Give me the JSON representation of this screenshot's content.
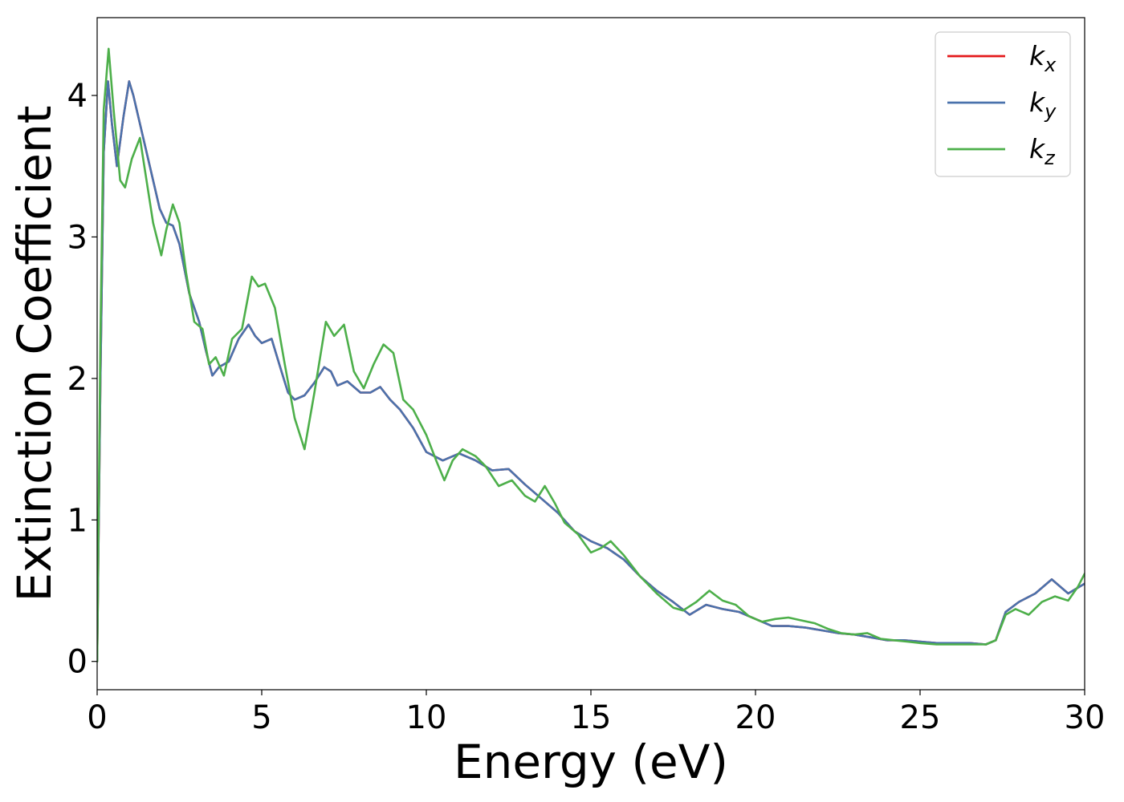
{
  "chart_data": {
    "type": "line",
    "title": "",
    "xlabel": "Energy (eV)",
    "ylabel": "Extinction Coefficient",
    "xlim": [
      0,
      30
    ],
    "ylim": [
      -0.2,
      4.55
    ],
    "xticks": [
      0,
      5,
      10,
      15,
      20,
      25,
      30
    ],
    "yticks": [
      0,
      1,
      2,
      3,
      4
    ],
    "grid": false,
    "legend_position": "top-right",
    "series": [
      {
        "name": "k_x",
        "legend_base": "k",
        "legend_sub": "x",
        "color": "#e41a1c",
        "points": [
          [
            0,
            0
          ],
          [
            0.1,
            2.0
          ],
          [
            0.2,
            3.6
          ],
          [
            0.33,
            4.1
          ],
          [
            0.45,
            3.8
          ],
          [
            0.6,
            3.5
          ],
          [
            0.8,
            3.85
          ],
          [
            0.97,
            4.1
          ],
          [
            1.1,
            4.0
          ],
          [
            1.3,
            3.8
          ],
          [
            1.6,
            3.5
          ],
          [
            1.9,
            3.2
          ],
          [
            2.1,
            3.1
          ],
          [
            2.3,
            3.08
          ],
          [
            2.5,
            2.95
          ],
          [
            2.8,
            2.6
          ],
          [
            3.1,
            2.4
          ],
          [
            3.3,
            2.2
          ],
          [
            3.5,
            2.02
          ],
          [
            3.7,
            2.08
          ],
          [
            4.0,
            2.12
          ],
          [
            4.3,
            2.28
          ],
          [
            4.6,
            2.38
          ],
          [
            4.8,
            2.3
          ],
          [
            5.0,
            2.25
          ],
          [
            5.3,
            2.28
          ],
          [
            5.6,
            2.05
          ],
          [
            5.8,
            1.9
          ],
          [
            6.0,
            1.85
          ],
          [
            6.3,
            1.88
          ],
          [
            6.6,
            1.97
          ],
          [
            6.9,
            2.08
          ],
          [
            7.1,
            2.05
          ],
          [
            7.3,
            1.95
          ],
          [
            7.6,
            1.98
          ],
          [
            8.0,
            1.9
          ],
          [
            8.3,
            1.9
          ],
          [
            8.6,
            1.94
          ],
          [
            8.9,
            1.85
          ],
          [
            9.2,
            1.78
          ],
          [
            9.6,
            1.65
          ],
          [
            10.0,
            1.48
          ],
          [
            10.5,
            1.42
          ],
          [
            11.0,
            1.47
          ],
          [
            11.5,
            1.42
          ],
          [
            12.0,
            1.35
          ],
          [
            12.5,
            1.36
          ],
          [
            13.0,
            1.25
          ],
          [
            13.5,
            1.15
          ],
          [
            14.0,
            1.05
          ],
          [
            14.5,
            0.92
          ],
          [
            15.0,
            0.85
          ],
          [
            15.5,
            0.8
          ],
          [
            16.0,
            0.72
          ],
          [
            16.5,
            0.6
          ],
          [
            17.0,
            0.5
          ],
          [
            17.5,
            0.42
          ],
          [
            18.0,
            0.33
          ],
          [
            18.5,
            0.4
          ],
          [
            19.0,
            0.37
          ],
          [
            19.5,
            0.35
          ],
          [
            20.0,
            0.3
          ],
          [
            20.5,
            0.25
          ],
          [
            21.0,
            0.25
          ],
          [
            21.5,
            0.24
          ],
          [
            22.0,
            0.22
          ],
          [
            22.5,
            0.2
          ],
          [
            23.0,
            0.19
          ],
          [
            23.5,
            0.17
          ],
          [
            24.0,
            0.15
          ],
          [
            24.5,
            0.15
          ],
          [
            25.0,
            0.14
          ],
          [
            25.5,
            0.13
          ],
          [
            26.0,
            0.13
          ],
          [
            26.5,
            0.13
          ],
          [
            27.0,
            0.12
          ],
          [
            27.3,
            0.15
          ],
          [
            27.6,
            0.35
          ],
          [
            28.0,
            0.42
          ],
          [
            28.5,
            0.48
          ],
          [
            29.0,
            0.58
          ],
          [
            29.5,
            0.48
          ],
          [
            30.0,
            0.55
          ]
        ]
      },
      {
        "name": "k_y",
        "legend_base": "k",
        "legend_sub": "y",
        "color": "#4a72ac",
        "points": [
          [
            0,
            0
          ],
          [
            0.1,
            2.0
          ],
          [
            0.2,
            3.6
          ],
          [
            0.33,
            4.1
          ],
          [
            0.45,
            3.8
          ],
          [
            0.6,
            3.5
          ],
          [
            0.8,
            3.85
          ],
          [
            0.97,
            4.1
          ],
          [
            1.1,
            4.0
          ],
          [
            1.3,
            3.8
          ],
          [
            1.6,
            3.5
          ],
          [
            1.9,
            3.2
          ],
          [
            2.1,
            3.1
          ],
          [
            2.3,
            3.08
          ],
          [
            2.5,
            2.95
          ],
          [
            2.8,
            2.6
          ],
          [
            3.1,
            2.4
          ],
          [
            3.3,
            2.2
          ],
          [
            3.5,
            2.02
          ],
          [
            3.7,
            2.08
          ],
          [
            4.0,
            2.12
          ],
          [
            4.3,
            2.28
          ],
          [
            4.6,
            2.38
          ],
          [
            4.8,
            2.3
          ],
          [
            5.0,
            2.25
          ],
          [
            5.3,
            2.28
          ],
          [
            5.6,
            2.05
          ],
          [
            5.8,
            1.9
          ],
          [
            6.0,
            1.85
          ],
          [
            6.3,
            1.88
          ],
          [
            6.6,
            1.97
          ],
          [
            6.9,
            2.08
          ],
          [
            7.1,
            2.05
          ],
          [
            7.3,
            1.95
          ],
          [
            7.6,
            1.98
          ],
          [
            8.0,
            1.9
          ],
          [
            8.3,
            1.9
          ],
          [
            8.6,
            1.94
          ],
          [
            8.9,
            1.85
          ],
          [
            9.2,
            1.78
          ],
          [
            9.6,
            1.65
          ],
          [
            10.0,
            1.48
          ],
          [
            10.5,
            1.42
          ],
          [
            11.0,
            1.47
          ],
          [
            11.5,
            1.42
          ],
          [
            12.0,
            1.35
          ],
          [
            12.5,
            1.36
          ],
          [
            13.0,
            1.25
          ],
          [
            13.5,
            1.15
          ],
          [
            14.0,
            1.05
          ],
          [
            14.5,
            0.92
          ],
          [
            15.0,
            0.85
          ],
          [
            15.5,
            0.8
          ],
          [
            16.0,
            0.72
          ],
          [
            16.5,
            0.6
          ],
          [
            17.0,
            0.5
          ],
          [
            17.5,
            0.42
          ],
          [
            18.0,
            0.33
          ],
          [
            18.5,
            0.4
          ],
          [
            19.0,
            0.37
          ],
          [
            19.5,
            0.35
          ],
          [
            20.0,
            0.3
          ],
          [
            20.5,
            0.25
          ],
          [
            21.0,
            0.25
          ],
          [
            21.5,
            0.24
          ],
          [
            22.0,
            0.22
          ],
          [
            22.5,
            0.2
          ],
          [
            23.0,
            0.19
          ],
          [
            23.5,
            0.17
          ],
          [
            24.0,
            0.15
          ],
          [
            24.5,
            0.15
          ],
          [
            25.0,
            0.14
          ],
          [
            25.5,
            0.13
          ],
          [
            26.0,
            0.13
          ],
          [
            26.5,
            0.13
          ],
          [
            27.0,
            0.12
          ],
          [
            27.3,
            0.15
          ],
          [
            27.6,
            0.35
          ],
          [
            28.0,
            0.42
          ],
          [
            28.5,
            0.48
          ],
          [
            29.0,
            0.58
          ],
          [
            29.5,
            0.48
          ],
          [
            30.0,
            0.55
          ]
        ]
      },
      {
        "name": "k_z",
        "legend_base": "k",
        "legend_sub": "z",
        "color": "#4daf4a",
        "points": [
          [
            0,
            0
          ],
          [
            0.1,
            2.3
          ],
          [
            0.2,
            3.9
          ],
          [
            0.35,
            4.33
          ],
          [
            0.5,
            3.9
          ],
          [
            0.7,
            3.4
          ],
          [
            0.85,
            3.35
          ],
          [
            1.05,
            3.55
          ],
          [
            1.3,
            3.7
          ],
          [
            1.5,
            3.4
          ],
          [
            1.7,
            3.1
          ],
          [
            1.95,
            2.87
          ],
          [
            2.1,
            3.05
          ],
          [
            2.3,
            3.23
          ],
          [
            2.5,
            3.1
          ],
          [
            2.7,
            2.75
          ],
          [
            2.95,
            2.4
          ],
          [
            3.2,
            2.35
          ],
          [
            3.4,
            2.1
          ],
          [
            3.6,
            2.15
          ],
          [
            3.85,
            2.02
          ],
          [
            4.1,
            2.28
          ],
          [
            4.4,
            2.35
          ],
          [
            4.7,
            2.72
          ],
          [
            4.9,
            2.65
          ],
          [
            5.1,
            2.67
          ],
          [
            5.4,
            2.5
          ],
          [
            5.7,
            2.1
          ],
          [
            6.0,
            1.72
          ],
          [
            6.3,
            1.5
          ],
          [
            6.6,
            1.9
          ],
          [
            6.95,
            2.4
          ],
          [
            7.2,
            2.3
          ],
          [
            7.5,
            2.38
          ],
          [
            7.8,
            2.05
          ],
          [
            8.1,
            1.93
          ],
          [
            8.4,
            2.1
          ],
          [
            8.7,
            2.24
          ],
          [
            9.0,
            2.18
          ],
          [
            9.3,
            1.85
          ],
          [
            9.6,
            1.78
          ],
          [
            10.0,
            1.6
          ],
          [
            10.3,
            1.42
          ],
          [
            10.55,
            1.28
          ],
          [
            10.8,
            1.42
          ],
          [
            11.1,
            1.5
          ],
          [
            11.5,
            1.45
          ],
          [
            11.8,
            1.38
          ],
          [
            12.2,
            1.24
          ],
          [
            12.6,
            1.28
          ],
          [
            13.0,
            1.17
          ],
          [
            13.3,
            1.13
          ],
          [
            13.6,
            1.24
          ],
          [
            13.9,
            1.12
          ],
          [
            14.2,
            0.98
          ],
          [
            14.6,
            0.9
          ],
          [
            15.0,
            0.77
          ],
          [
            15.3,
            0.8
          ],
          [
            15.6,
            0.85
          ],
          [
            16.0,
            0.75
          ],
          [
            16.5,
            0.6
          ],
          [
            17.0,
            0.48
          ],
          [
            17.5,
            0.38
          ],
          [
            17.8,
            0.36
          ],
          [
            18.2,
            0.42
          ],
          [
            18.6,
            0.5
          ],
          [
            19.0,
            0.43
          ],
          [
            19.4,
            0.4
          ],
          [
            19.8,
            0.32
          ],
          [
            20.2,
            0.28
          ],
          [
            20.6,
            0.3
          ],
          [
            21.0,
            0.31
          ],
          [
            21.4,
            0.29
          ],
          [
            21.8,
            0.27
          ],
          [
            22.2,
            0.23
          ],
          [
            22.6,
            0.2
          ],
          [
            23.0,
            0.19
          ],
          [
            23.4,
            0.2
          ],
          [
            23.8,
            0.16
          ],
          [
            24.2,
            0.15
          ],
          [
            24.6,
            0.14
          ],
          [
            25.0,
            0.13
          ],
          [
            25.5,
            0.12
          ],
          [
            26.0,
            0.12
          ],
          [
            26.5,
            0.12
          ],
          [
            27.0,
            0.12
          ],
          [
            27.3,
            0.15
          ],
          [
            27.6,
            0.33
          ],
          [
            27.9,
            0.37
          ],
          [
            28.3,
            0.33
          ],
          [
            28.7,
            0.42
          ],
          [
            29.1,
            0.46
          ],
          [
            29.5,
            0.43
          ],
          [
            29.8,
            0.53
          ],
          [
            30.0,
            0.62
          ]
        ]
      }
    ]
  }
}
